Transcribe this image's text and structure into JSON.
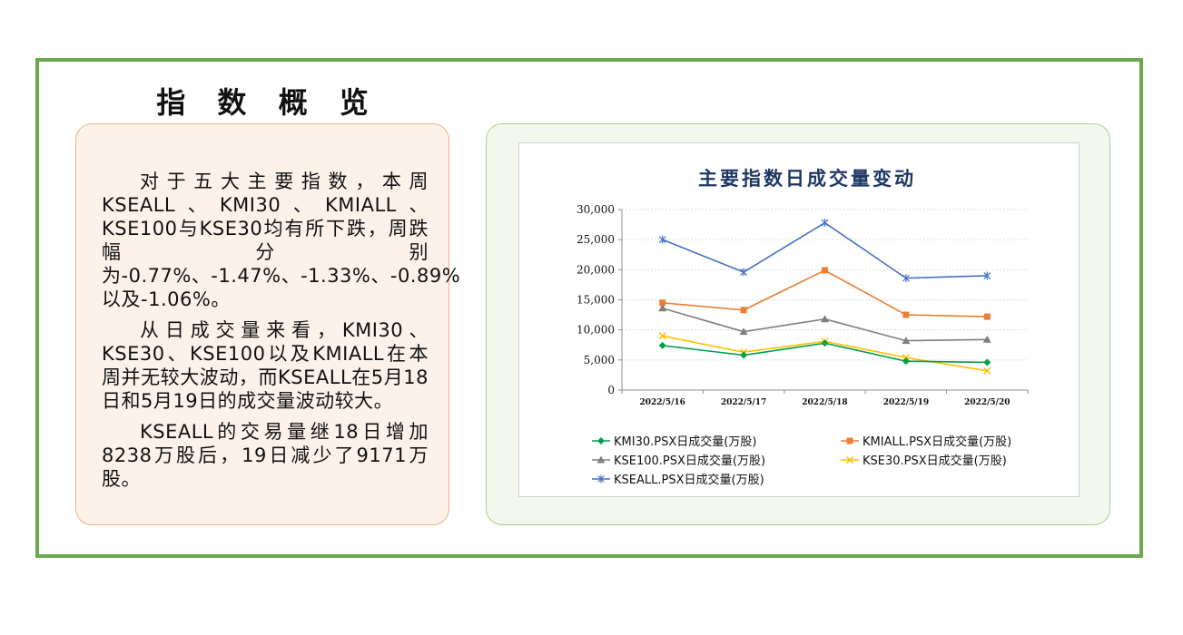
{
  "page": {
    "title": "指 数 概 览",
    "paragraphs": [
      "对于五大主要指数，本周KSEALL、KMI30、KMIALL、KSE100与KSE30均有所下跌，周跌幅分别为-0.77%、-1.47%、-1.33%、-0.89%以及-1.06%。",
      "从日成交量来看，KMI30、KSE30、KSE100以及KMIALL在本周并无较大波动，而KSEALL在5月18日和5月19日的成交量波动较大。",
      "KSEALL的交易量继18日增加8238万股后，19日减少了9171万股。"
    ]
  },
  "colors": {
    "frame": "#6aa84f",
    "text_panel_bg": "#fdf2ea",
    "chart_panel_bg": "#f3f8ef",
    "title": "#1f3864"
  },
  "chart_data": {
    "type": "line",
    "title": "主要指数日成交量变动",
    "categories": [
      "2022/5/16",
      "2022/5/17",
      "2022/5/18",
      "2022/5/19",
      "2022/5/20"
    ],
    "ylim": [
      0,
      30000
    ],
    "yticks": [
      0,
      5000,
      10000,
      15000,
      20000,
      25000,
      30000
    ],
    "ytick_labels": [
      "0",
      "5,000",
      "10,000",
      "15,000",
      "20,000",
      "25,000",
      "30,000"
    ],
    "grid": true,
    "legend_position": "bottom",
    "series": [
      {
        "name": "KMI30.PSX日成交量(万股)",
        "color": "#00a04a",
        "marker": "diamond",
        "values": [
          7400,
          5800,
          7800,
          4800,
          4600
        ]
      },
      {
        "name": "KMIALL.PSX日成交量(万股)",
        "color": "#ed7d31",
        "marker": "square",
        "values": [
          14500,
          13300,
          19900,
          12500,
          12200
        ]
      },
      {
        "name": "KSE100.PSX日成交量(万股)",
        "color": "#7f7f7f",
        "marker": "triangle",
        "values": [
          13600,
          9700,
          11800,
          8200,
          8400
        ]
      },
      {
        "name": "KSE30.PSX日成交量(万股)",
        "color": "#ffc000",
        "marker": "x",
        "values": [
          9000,
          6300,
          8100,
          5400,
          3200
        ]
      },
      {
        "name": "KSEALL.PSX日成交量(万股)",
        "color": "#4472c4",
        "marker": "star",
        "values": [
          25000,
          19600,
          27800,
          18600,
          19000
        ]
      }
    ]
  }
}
